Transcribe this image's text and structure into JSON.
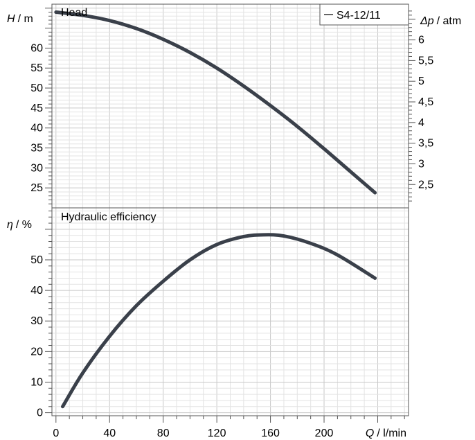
{
  "colors": {
    "curve": "#3a404a",
    "grid_minor": "#e3e3e3",
    "grid_major": "#c8c8c8",
    "frame": "#555555",
    "text": "#000000"
  },
  "chart_data": [
    {
      "type": "line",
      "panel": "top",
      "title": "Head",
      "series": [
        {
          "name": "S4-12/11",
          "x": [
            0,
            20,
            40,
            60,
            80,
            100,
            120,
            140,
            160,
            180,
            200,
            220,
            238
          ],
          "y": [
            69.0,
            68.2,
            66.9,
            64.9,
            62.2,
            58.9,
            55.0,
            50.5,
            45.6,
            40.4,
            34.8,
            29.0,
            23.8
          ]
        }
      ],
      "xlim": [
        -3,
        263
      ],
      "ylim": [
        20,
        71
      ],
      "y_ticks": [
        25,
        30,
        35,
        40,
        45,
        50,
        55,
        60
      ],
      "y_label_main": "H",
      "y_label_unit": "/ m",
      "right_axis": {
        "label_main": "Δp",
        "label_unit": "/ atm",
        "ticks": [
          "6",
          "5,5",
          "5",
          "4,5",
          "4",
          "3,5",
          "3",
          "2,5"
        ],
        "tick_values": [
          6,
          5.5,
          5,
          4.5,
          4,
          3.5,
          3,
          2.5
        ],
        "scale": 0.0967,
        "range": [
          2.0,
          6.8
        ]
      },
      "legend": "top-right",
      "grid": true
    },
    {
      "type": "line",
      "panel": "bottom",
      "title": "Hydraulic efficiency",
      "series": [
        {
          "name": "",
          "x": [
            5,
            20,
            40,
            60,
            80,
            100,
            120,
            140,
            155,
            170,
            190,
            210,
            238
          ],
          "y": [
            2.0,
            13.0,
            25.0,
            35.0,
            43.0,
            50.0,
            55.0,
            57.6,
            58.2,
            57.8,
            55.4,
            51.6,
            44.0
          ]
        }
      ],
      "xlim": [
        -3,
        263
      ],
      "ylim": [
        -1,
        67
      ],
      "y_ticks": [
        0,
        10,
        20,
        30,
        40,
        50
      ],
      "y_label_main": "η",
      "y_label_unit": "/ %",
      "grid": true
    }
  ],
  "x_axis": {
    "ticks": [
      0,
      40,
      80,
      120,
      160,
      200
    ],
    "label_main": "Q",
    "label_unit": "/ l/min"
  },
  "legend": {
    "label": "S4-12/11"
  }
}
